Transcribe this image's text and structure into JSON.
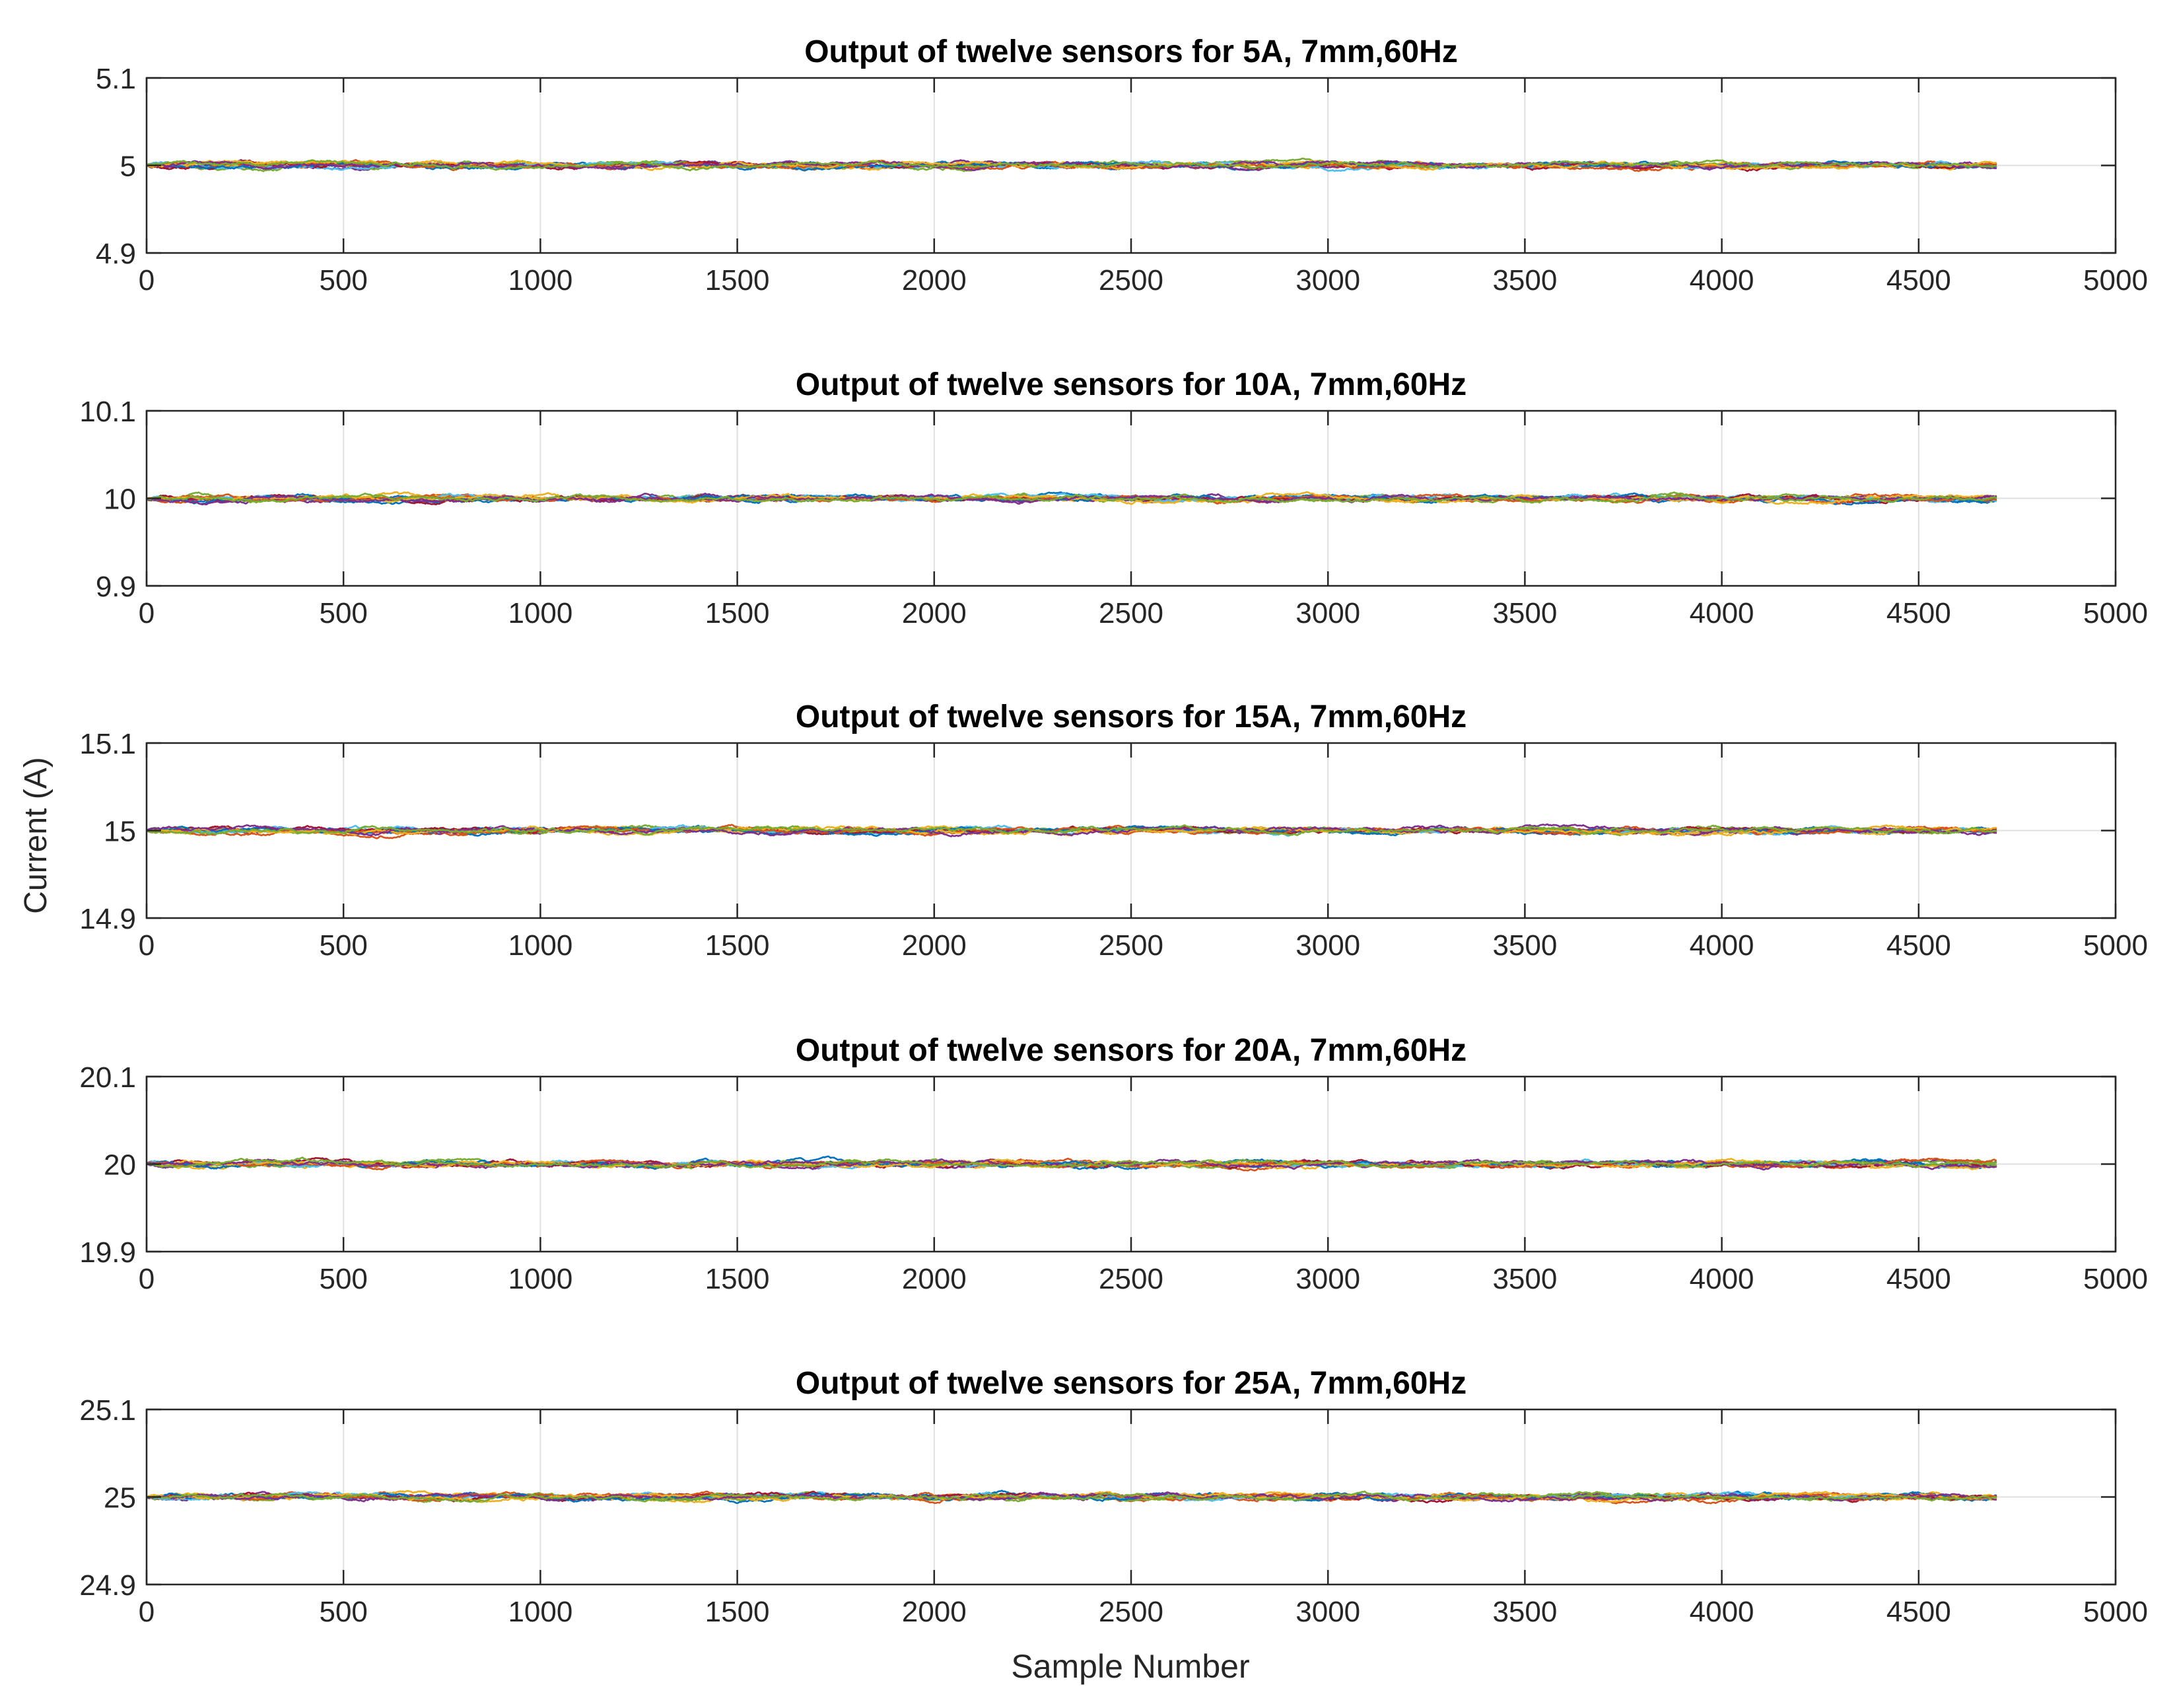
{
  "figure": {
    "ylabel": "Current (A)",
    "xlabel": "Sample Number"
  },
  "colors": [
    "#0072BD",
    "#D95319",
    "#EDB120",
    "#7E2F8E",
    "#77AC30",
    "#4DBEEE",
    "#A2142F"
  ],
  "chart_data": [
    {
      "type": "line",
      "title": "Output of twelve sensors for 5A, 7mm,60Hz",
      "xlim": [
        0,
        5000
      ],
      "ylim": [
        4.9,
        5.1
      ],
      "xticks": [
        "0",
        "500",
        "1000",
        "1500",
        "2000",
        "2500",
        "3000",
        "3500",
        "4000",
        "4500",
        "5000"
      ],
      "yticks": [
        "4.9",
        "5",
        "5.1"
      ],
      "center": 5,
      "n_series": 12,
      "n_samples": 4700,
      "grid": true
    },
    {
      "type": "line",
      "title": "Output of twelve sensors  for 10A, 7mm,60Hz",
      "xlim": [
        0,
        5000
      ],
      "ylim": [
        9.9,
        10.1
      ],
      "xticks": [
        "0",
        "500",
        "1000",
        "1500",
        "2000",
        "2500",
        "3000",
        "3500",
        "4000",
        "4500",
        "5000"
      ],
      "yticks": [
        "9.9",
        "10",
        "10.1"
      ],
      "center": 10,
      "n_series": 12,
      "n_samples": 4700,
      "grid": true
    },
    {
      "type": "line",
      "title": "Output of twelve sensors for 15A, 7mm,60Hz",
      "xlim": [
        0,
        5000
      ],
      "ylim": [
        14.9,
        15.1
      ],
      "xticks": [
        "0",
        "500",
        "1000",
        "1500",
        "2000",
        "2500",
        "3000",
        "3500",
        "4000",
        "4500",
        "5000"
      ],
      "yticks": [
        "14.9",
        "15",
        "15.1"
      ],
      "center": 15,
      "n_series": 12,
      "n_samples": 4700,
      "grid": true
    },
    {
      "type": "line",
      "title": "Output of twelve sensors for 20A, 7mm,60Hz",
      "xlim": [
        0,
        5000
      ],
      "ylim": [
        19.9,
        20.1
      ],
      "xticks": [
        "0",
        "500",
        "1000",
        "1500",
        "2000",
        "2500",
        "3000",
        "3500",
        "4000",
        "4500",
        "5000"
      ],
      "yticks": [
        "19.9",
        "20",
        "20.1"
      ],
      "center": 20,
      "n_series": 12,
      "n_samples": 4700,
      "grid": true
    },
    {
      "type": "line",
      "title": "Output of twelve sensors for 25A, 7mm,60Hz",
      "xlim": [
        0,
        5000
      ],
      "ylim": [
        24.9,
        25.1
      ],
      "xticks": [
        "0",
        "500",
        "1000",
        "1500",
        "2000",
        "2500",
        "3000",
        "3500",
        "4000",
        "4500",
        "5000"
      ],
      "yticks": [
        "24.9",
        "25",
        "25.1"
      ],
      "center": 25,
      "n_series": 12,
      "n_samples": 4700,
      "grid": true
    }
  ]
}
